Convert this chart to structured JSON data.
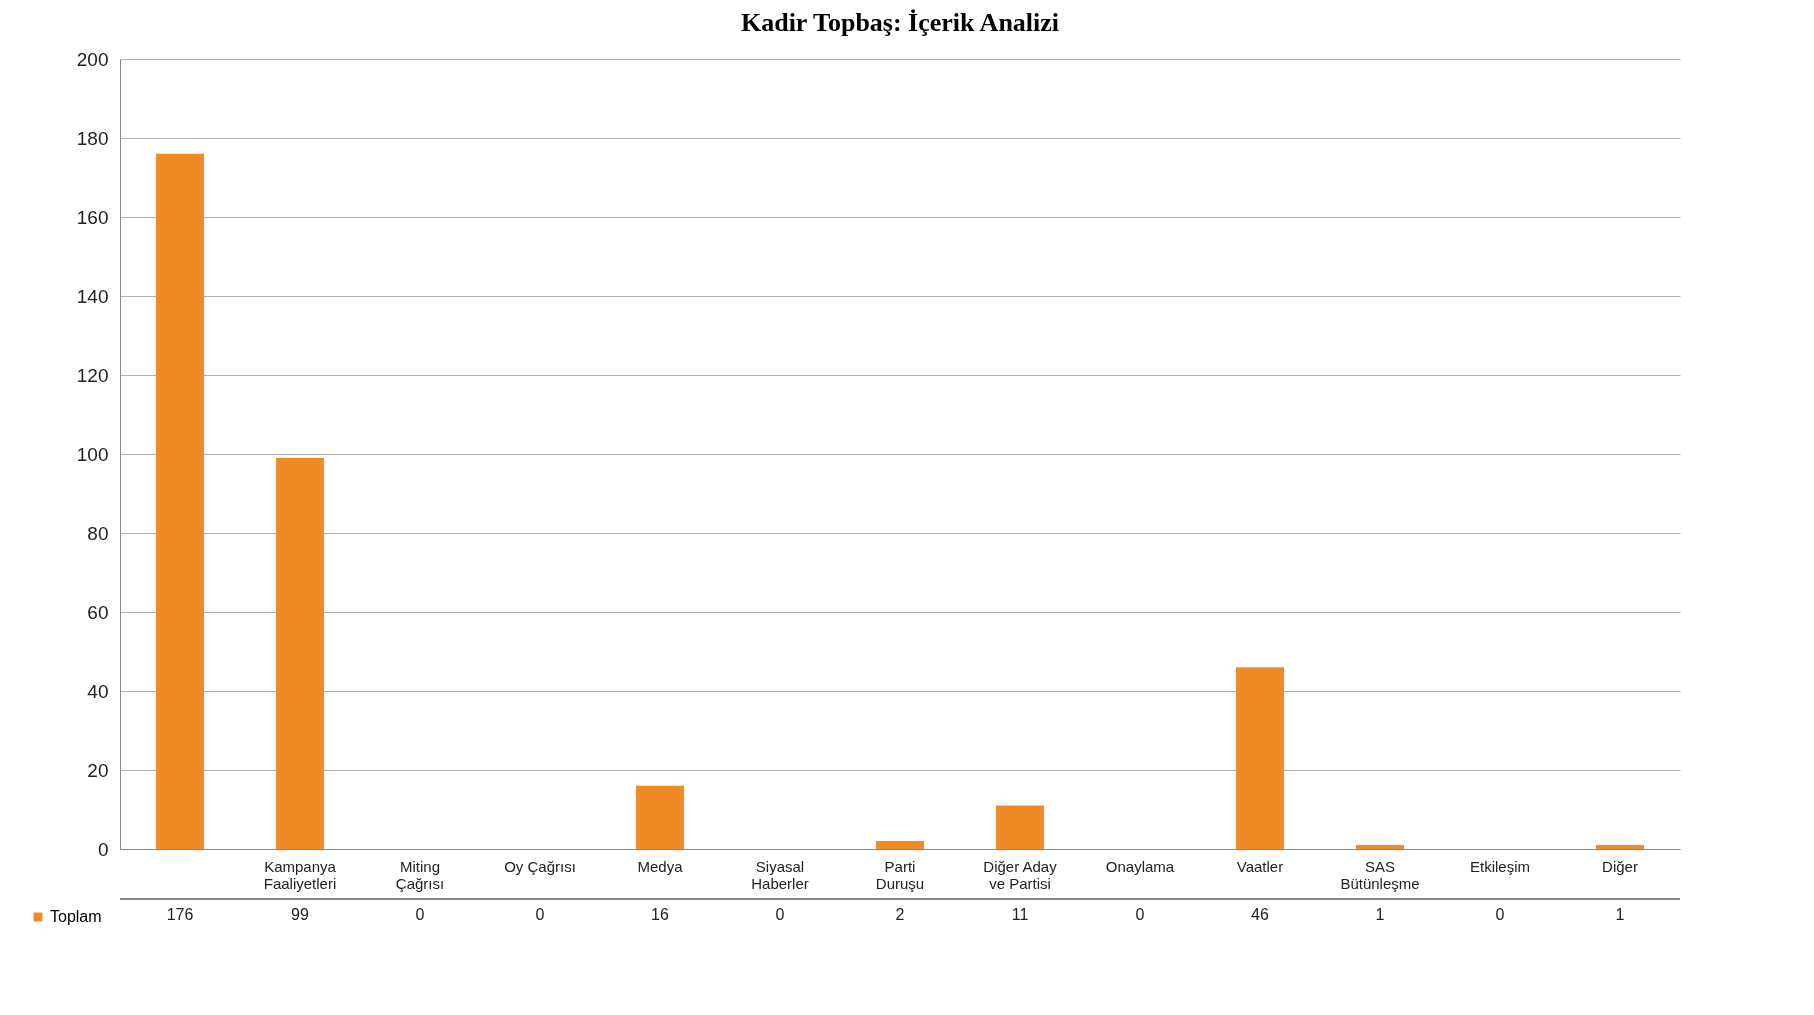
{
  "chart_data": {
    "type": "bar",
    "title": "Kadir Topbaş: İçerik Analizi",
    "categories": [
      null,
      "Kampanya Faaliyetleri",
      "Miting Çağrısı",
      "Oy Çağrısı",
      "Medya",
      "Siyasal Haberler",
      "Parti Duruşu",
      "Diğer Aday ve Partisi",
      "Onaylama",
      "Vaatler",
      "SAS Bütünleşme",
      "Etkileşim",
      "Diğer"
    ],
    "series": [
      {
        "name": "Toplam",
        "color": "#ef8a26",
        "values": [
          176,
          99,
          0,
          0,
          16,
          0,
          2,
          11,
          0,
          46,
          1,
          0,
          1
        ]
      }
    ],
    "ylim": [
      0,
      200
    ],
    "yticks": [
      0,
      20,
      40,
      60,
      80,
      100,
      120,
      140,
      160,
      180,
      200
    ],
    "grid": "y",
    "legend": "bottom left",
    "data_labels": true
  }
}
